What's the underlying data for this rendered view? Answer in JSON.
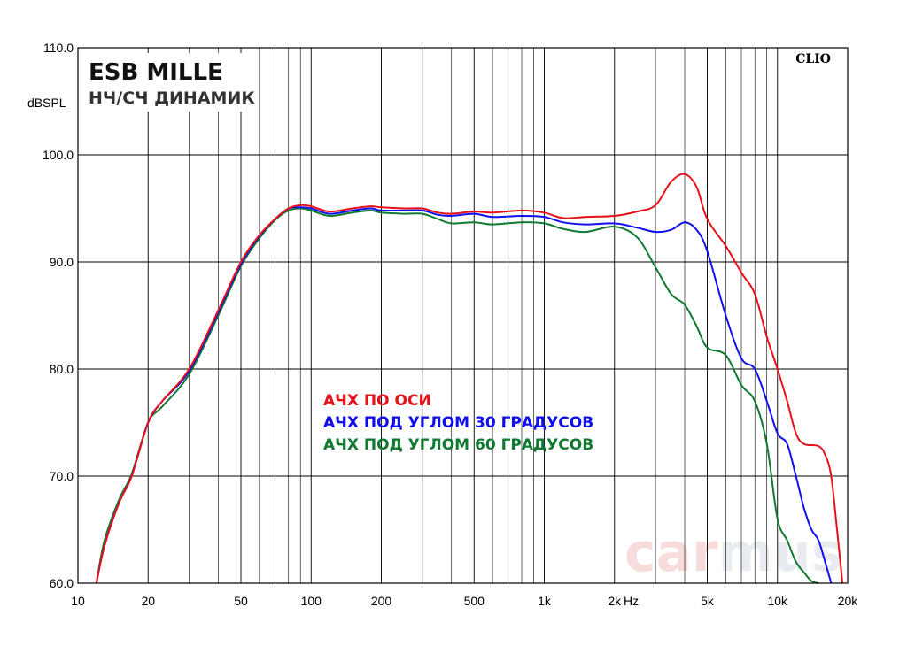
{
  "chart_data": {
    "type": "line",
    "title": "ESB MILLE",
    "subtitle": "НЧ/СЧ ДИНАМИК",
    "ylabel": "dBSPL",
    "xunit": "Hz",
    "brand": "CLIO",
    "watermark": "carmus",
    "xscale": "log",
    "xlim": [
      10,
      20000
    ],
    "ylim": [
      60,
      110
    ],
    "grid": true,
    "x_ticks": [
      {
        "value": 10,
        "label": "10"
      },
      {
        "value": 20,
        "label": "20"
      },
      {
        "value": 50,
        "label": "50"
      },
      {
        "value": 100,
        "label": "100"
      },
      {
        "value": 200,
        "label": "200"
      },
      {
        "value": 500,
        "label": "500"
      },
      {
        "value": 1000,
        "label": "1k"
      },
      {
        "value": 2000,
        "label": "2k"
      },
      {
        "value": 5000,
        "label": "5k"
      },
      {
        "value": 10000,
        "label": "10k"
      },
      {
        "value": 20000,
        "label": "20k"
      }
    ],
    "y_ticks": [
      {
        "value": 60,
        "label": "60.0"
      },
      {
        "value": 70,
        "label": "70.0"
      },
      {
        "value": 80,
        "label": "80.0"
      },
      {
        "value": 90,
        "label": "90.0"
      },
      {
        "value": 100,
        "label": "100.0"
      },
      {
        "value": 110,
        "label": "110.0"
      }
    ],
    "legend_position": "center",
    "series": [
      {
        "name": "АЧХ ПО ОСИ",
        "color": "#e8101a",
        "points": [
          [
            12,
            60
          ],
          [
            13,
            63.5
          ],
          [
            15,
            67.5
          ],
          [
            17,
            70
          ],
          [
            20,
            75
          ],
          [
            23,
            77
          ],
          [
            30,
            80
          ],
          [
            40,
            85.5
          ],
          [
            50,
            90
          ],
          [
            60,
            92.5
          ],
          [
            70,
            94
          ],
          [
            80,
            95
          ],
          [
            90,
            95.3
          ],
          [
            100,
            95.2
          ],
          [
            120,
            94.7
          ],
          [
            150,
            95
          ],
          [
            180,
            95.2
          ],
          [
            200,
            95.1
          ],
          [
            250,
            95
          ],
          [
            300,
            95
          ],
          [
            350,
            94.6
          ],
          [
            400,
            94.5
          ],
          [
            500,
            94.7
          ],
          [
            600,
            94.6
          ],
          [
            800,
            94.8
          ],
          [
            1000,
            94.6
          ],
          [
            1200,
            94.1
          ],
          [
            1500,
            94.2
          ],
          [
            2000,
            94.3
          ],
          [
            2500,
            94.7
          ],
          [
            3000,
            95.3
          ],
          [
            3500,
            97.5
          ],
          [
            4000,
            98.2
          ],
          [
            4500,
            97
          ],
          [
            5000,
            94
          ],
          [
            6000,
            91.5
          ],
          [
            7000,
            89
          ],
          [
            8000,
            87
          ],
          [
            9000,
            83
          ],
          [
            10000,
            80
          ],
          [
            11000,
            77
          ],
          [
            12000,
            74
          ],
          [
            13000,
            73
          ],
          [
            15000,
            72.8
          ],
          [
            16000,
            72
          ],
          [
            17000,
            70
          ],
          [
            18000,
            65
          ],
          [
            19000,
            60
          ]
        ]
      },
      {
        "name": "АЧХ ПОД УГЛОМ 30 ГРАДУСОВ",
        "color": "#1010ee",
        "points": [
          [
            12,
            60
          ],
          [
            13,
            63.5
          ],
          [
            15,
            67.5
          ],
          [
            17,
            70
          ],
          [
            20,
            75
          ],
          [
            23,
            77
          ],
          [
            30,
            79.8
          ],
          [
            40,
            85.3
          ],
          [
            50,
            89.8
          ],
          [
            60,
            92.4
          ],
          [
            70,
            94
          ],
          [
            80,
            95
          ],
          [
            90,
            95.1
          ],
          [
            100,
            95
          ],
          [
            120,
            94.5
          ],
          [
            150,
            94.8
          ],
          [
            180,
            95
          ],
          [
            200,
            94.8
          ],
          [
            250,
            94.8
          ],
          [
            300,
            94.8
          ],
          [
            350,
            94.4
          ],
          [
            400,
            94.3
          ],
          [
            500,
            94.5
          ],
          [
            600,
            94.2
          ],
          [
            800,
            94.3
          ],
          [
            1000,
            94.2
          ],
          [
            1200,
            93.7
          ],
          [
            1500,
            93.5
          ],
          [
            2000,
            93.6
          ],
          [
            2500,
            93.2
          ],
          [
            3000,
            92.8
          ],
          [
            3500,
            93
          ],
          [
            4000,
            93.7
          ],
          [
            4500,
            93
          ],
          [
            5000,
            91
          ],
          [
            6000,
            85
          ],
          [
            7000,
            81
          ],
          [
            8000,
            80
          ],
          [
            9000,
            77
          ],
          [
            10000,
            74
          ],
          [
            11000,
            73
          ],
          [
            12000,
            70
          ],
          [
            13000,
            67
          ],
          [
            14000,
            65
          ],
          [
            15000,
            64
          ],
          [
            16000,
            62
          ],
          [
            17000,
            60
          ]
        ]
      },
      {
        "name": "АЧХ ПОД УГЛОМ 60 ГРАДУСОВ",
        "color": "#107a30",
        "points": [
          [
            12,
            60
          ],
          [
            13,
            64
          ],
          [
            15,
            67.8
          ],
          [
            17,
            70.2
          ],
          [
            20,
            75
          ],
          [
            23,
            76.5
          ],
          [
            30,
            79.5
          ],
          [
            40,
            85
          ],
          [
            50,
            89.6
          ],
          [
            60,
            92.2
          ],
          [
            70,
            93.9
          ],
          [
            80,
            94.8
          ],
          [
            90,
            95
          ],
          [
            100,
            94.8
          ],
          [
            120,
            94.3
          ],
          [
            150,
            94.6
          ],
          [
            180,
            94.8
          ],
          [
            200,
            94.6
          ],
          [
            250,
            94.5
          ],
          [
            300,
            94.5
          ],
          [
            350,
            94
          ],
          [
            400,
            93.6
          ],
          [
            500,
            93.7
          ],
          [
            600,
            93.5
          ],
          [
            800,
            93.7
          ],
          [
            1000,
            93.6
          ],
          [
            1200,
            93.1
          ],
          [
            1500,
            92.8
          ],
          [
            2000,
            93.3
          ],
          [
            2500,
            92.3
          ],
          [
            3000,
            89.5
          ],
          [
            3500,
            87
          ],
          [
            4000,
            86
          ],
          [
            4500,
            84
          ],
          [
            5000,
            82
          ],
          [
            6000,
            81.3
          ],
          [
            7000,
            78.5
          ],
          [
            8000,
            77
          ],
          [
            9000,
            73
          ],
          [
            10000,
            66
          ],
          [
            11000,
            64
          ],
          [
            12000,
            62
          ],
          [
            13000,
            61
          ],
          [
            14000,
            60.2
          ],
          [
            15000,
            60
          ]
        ]
      }
    ]
  }
}
